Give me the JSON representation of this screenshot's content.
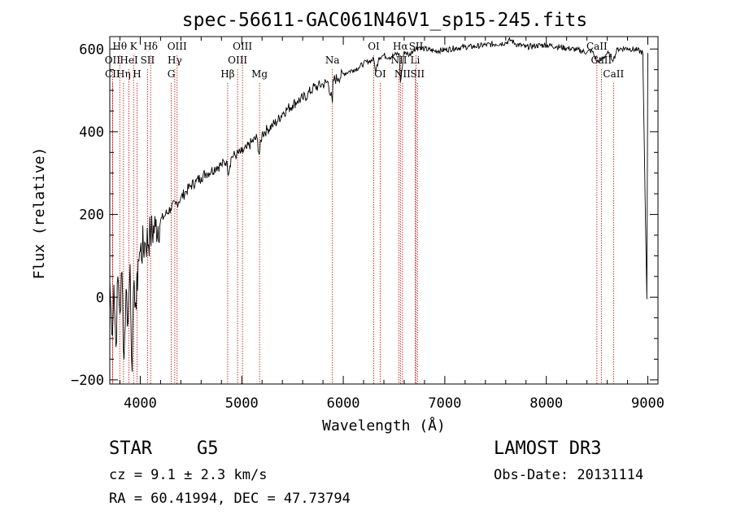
{
  "chart_data": {
    "type": "line",
    "title": "spec-56611-GAC061N46V1_sp15-245.fits",
    "xlabel": "Wavelength (Å)",
    "ylabel": "Flux (relative)",
    "xlim": [
      3700,
      9100
    ],
    "ylim": [
      -210,
      630
    ],
    "xticks": [
      {
        "value": 4000,
        "label": "4000"
      },
      {
        "value": 5000,
        "label": "5000"
      },
      {
        "value": 6000,
        "label": "6000"
      },
      {
        "value": 7000,
        "label": "7000"
      },
      {
        "value": 8000,
        "label": "8000"
      },
      {
        "value": 9000,
        "label": "9000"
      }
    ],
    "yticks": [
      {
        "value": -200,
        "label": "−200"
      },
      {
        "value": 0,
        "label": "0"
      },
      {
        "value": 200,
        "label": "200"
      },
      {
        "value": 400,
        "label": "400"
      },
      {
        "value": 600,
        "label": "600"
      }
    ],
    "series": [
      {
        "name": "spectrum",
        "color": "#000000",
        "x": [
          3700,
          3720,
          3740,
          3760,
          3780,
          3800,
          3820,
          3840,
          3860,
          3880,
          3900,
          3920,
          3940,
          3960,
          3980,
          4000,
          4050,
          4100,
          4150,
          4200,
          4250,
          4300,
          4350,
          4400,
          4450,
          4500,
          4550,
          4600,
          4650,
          4700,
          4750,
          4800,
          4850,
          4861,
          4900,
          4950,
          5000,
          5050,
          5100,
          5150,
          5172,
          5200,
          5250,
          5300,
          5350,
          5400,
          5450,
          5500,
          5550,
          5600,
          5650,
          5700,
          5750,
          5800,
          5850,
          5893,
          5900,
          5950,
          6000,
          6050,
          6100,
          6150,
          6200,
          6250,
          6300,
          6320,
          6350,
          6400,
          6450,
          6500,
          6550,
          6563,
          6600,
          6650,
          6700,
          6750,
          6800,
          6900,
          7000,
          7100,
          7200,
          7300,
          7400,
          7500,
          7600,
          7650,
          7700,
          7800,
          7900,
          8000,
          8100,
          8200,
          8300,
          8400,
          8450,
          8498,
          8542,
          8600,
          8662,
          8700,
          8800,
          8900,
          8950,
          8990,
          9000
        ],
        "y": [
          40,
          -90,
          30,
          -120,
          50,
          -40,
          60,
          -150,
          20,
          -60,
          80,
          -180,
          40,
          -30,
          90,
          110,
          130,
          150,
          170,
          185,
          200,
          215,
          225,
          240,
          255,
          270,
          280,
          290,
          300,
          305,
          315,
          320,
          330,
          300,
          340,
          345,
          350,
          360,
          375,
          385,
          345,
          395,
          405,
          415,
          425,
          445,
          455,
          465,
          475,
          480,
          490,
          505,
          510,
          515,
          520,
          470,
          525,
          530,
          540,
          545,
          550,
          555,
          565,
          570,
          575,
          545,
          580,
          585,
          580,
          585,
          590,
          520,
          595,
          585,
          600,
          605,
          600,
          595,
          598,
          602,
          605,
          606,
          610,
          612,
          615,
          622,
          612,
          605,
          608,
          610,
          606,
          602,
          598,
          592,
          596,
          570,
          574,
          590,
          575,
          600,
          602,
          597,
          591,
          -5,
          590
        ]
      }
    ],
    "line_markers": [
      {
        "label": "Hθ",
        "wavelength": 3798,
        "row": 1
      },
      {
        "label": "K",
        "wavelength": 3934,
        "row": 1
      },
      {
        "label": "Hδ",
        "wavelength": 4102,
        "row": 1
      },
      {
        "label": "OIII",
        "wavelength": 4363,
        "row": 1
      },
      {
        "label": "OIII",
        "wavelength": 5007,
        "row": 1
      },
      {
        "label": "OI",
        "wavelength": 6300,
        "row": 1
      },
      {
        "label": "Hα",
        "wavelength": 6563,
        "row": 1
      },
      {
        "label": "SII",
        "wavelength": 6717,
        "row": 1
      },
      {
        "label": "CaII",
        "wavelength": 8498,
        "row": 1
      },
      {
        "label": "OII",
        "wavelength": 3727,
        "row": 2
      },
      {
        "label": "HeI",
        "wavelength": 3889,
        "row": 2
      },
      {
        "label": "SII",
        "wavelength": 4072,
        "row": 2
      },
      {
        "label": "Hγ",
        "wavelength": 4340,
        "row": 2
      },
      {
        "label": "OIII",
        "wavelength": 4959,
        "row": 2
      },
      {
        "label": "Na",
        "wavelength": 5893,
        "row": 2
      },
      {
        "label": "NII",
        "wavelength": 6548,
        "row": 2
      },
      {
        "label": "Li",
        "wavelength": 6708,
        "row": 2
      },
      {
        "label": "CaII",
        "wavelength": 8542,
        "row": 2
      },
      {
        "label": "CII",
        "wavelength": 3727,
        "row": 3
      },
      {
        "label": "Hη",
        "wavelength": 3835,
        "row": 3
      },
      {
        "label": "H",
        "wavelength": 3968,
        "row": 3
      },
      {
        "label": "G",
        "wavelength": 4305,
        "row": 3
      },
      {
        "label": "Hβ",
        "wavelength": 4861,
        "row": 3
      },
      {
        "label": "Mg",
        "wavelength": 5175,
        "row": 3
      },
      {
        "label": "OI",
        "wavelength": 6364,
        "row": 3
      },
      {
        "label": "NII",
        "wavelength": 6583,
        "row": 3
      },
      {
        "label": "SII",
        "wavelength": 6731,
        "row": 3
      },
      {
        "label": "CaII",
        "wavelength": 8662,
        "row": 3
      }
    ]
  },
  "info": {
    "object_class": "STAR",
    "subclass": "G5",
    "survey": "LAMOST DR3",
    "cz_line": "cz = 9.1 ± 2.3 km/s",
    "obs_date_line": "Obs-Date: 20131114",
    "coords_line": "RA =  60.41994, DEC =  47.73794"
  },
  "colors": {
    "spectrum": "#000000",
    "marker_line": "#cc0000",
    "axis": "#000000"
  }
}
